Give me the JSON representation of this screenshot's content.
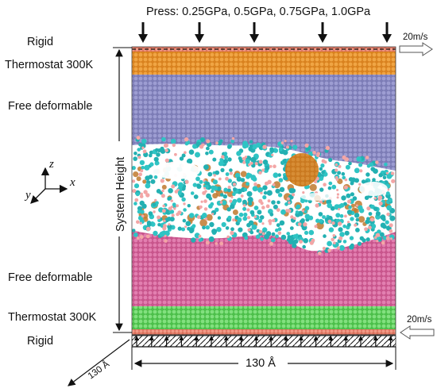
{
  "figure": {
    "press_label": "Press: 0.25GPa, 0.5GPa, 0.75GPa, 1.0GPa",
    "layers": {
      "rigid_top": "Rigid",
      "thermostat_top": "Thermostat 300K",
      "free_top": "Free deformable",
      "free_bottom": "Free deformable",
      "thermostat_bottom": "Thermostat 300K",
      "rigid_bottom": "Rigid"
    },
    "velocity_top": "20m/s",
    "velocity_bottom": "20m/s",
    "system_height_label": "System Height",
    "width_label": "130 Å",
    "depth_label": "130 Å",
    "axes": {
      "x": "x",
      "y": "y",
      "z": "z"
    }
  },
  "colors": {
    "rigid": "#e8836f",
    "thermostat_top": "#e8962e",
    "free_top": "#8c8cc4",
    "free_bottom": "#d8689e",
    "thermostat_bottom": "#6cd36a",
    "lubricant": "#2fc4c4",
    "lubricant_h": "#f3a6a6",
    "core": "#c0792e"
  }
}
